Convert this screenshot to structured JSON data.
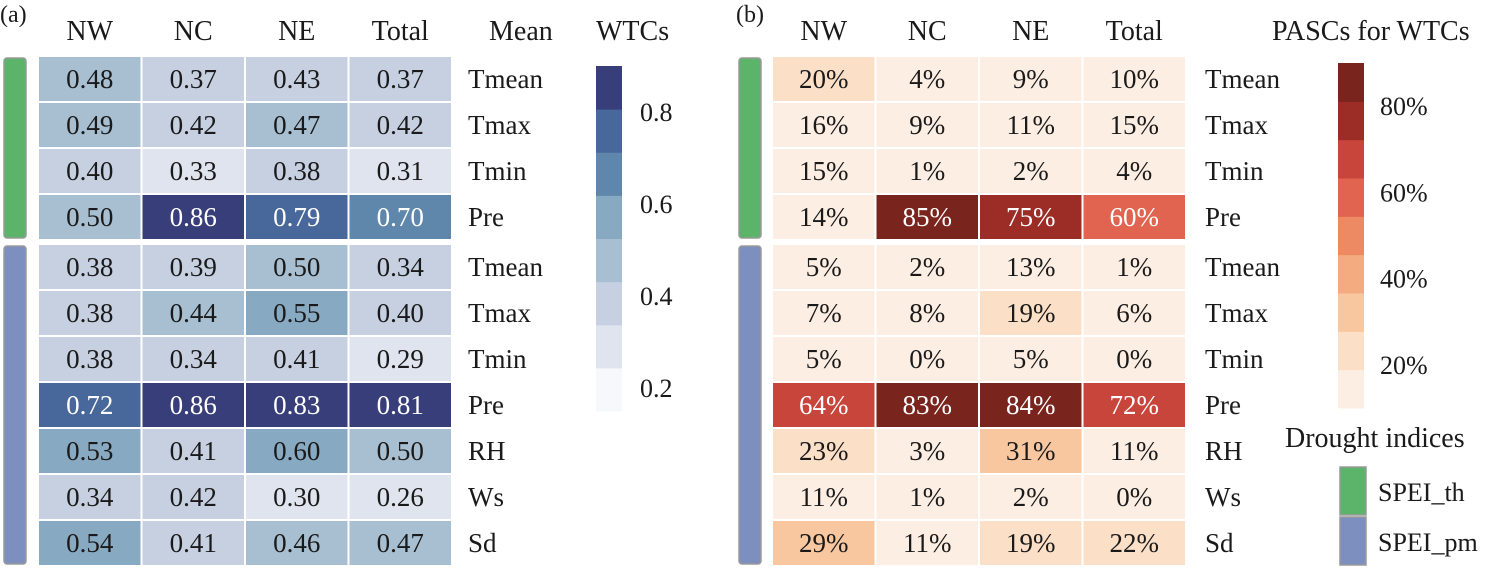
{
  "chart_data": [
    {
      "type": "heatmap",
      "panel_label": "(a)",
      "columns": [
        "NW",
        "NC",
        "NE",
        "Total"
      ],
      "row_header": "Mean",
      "rows": [
        "Tmean",
        "Tmax",
        "Tmin",
        "Pre",
        "Tmean",
        "Tmax",
        "Tmin",
        "Pre",
        "RH",
        "Ws",
        "Sd"
      ],
      "row_groups": [
        "SPEI_th",
        "SPEI_th",
        "SPEI_th",
        "SPEI_th",
        "SPEI_pm",
        "SPEI_pm",
        "SPEI_pm",
        "SPEI_pm",
        "SPEI_pm",
        "SPEI_pm",
        "SPEI_pm"
      ],
      "values": [
        [
          0.48,
          0.37,
          0.43,
          0.37
        ],
        [
          0.49,
          0.42,
          0.47,
          0.42
        ],
        [
          0.4,
          0.33,
          0.38,
          0.31
        ],
        [
          0.5,
          0.86,
          0.79,
          0.7
        ],
        [
          0.38,
          0.39,
          0.5,
          0.34
        ],
        [
          0.38,
          0.44,
          0.55,
          0.4
        ],
        [
          0.38,
          0.34,
          0.41,
          0.29
        ],
        [
          0.72,
          0.86,
          0.83,
          0.81
        ],
        [
          0.53,
          0.41,
          0.6,
          0.5
        ],
        [
          0.34,
          0.42,
          0.3,
          0.26
        ],
        [
          0.54,
          0.41,
          0.46,
          0.47
        ]
      ],
      "value_labels": [
        [
          "0.48",
          "0.37",
          "0.43",
          "0.37"
        ],
        [
          "0.49",
          "0.42",
          "0.47",
          "0.42"
        ],
        [
          "0.40",
          "0.33",
          "0.38",
          "0.31"
        ],
        [
          "0.50",
          "0.86",
          "0.79",
          "0.70"
        ],
        [
          "0.38",
          "0.39",
          "0.50",
          "0.34"
        ],
        [
          "0.38",
          "0.44",
          "0.55",
          "0.40"
        ],
        [
          "0.38",
          "0.34",
          "0.41",
          "0.29"
        ],
        [
          "0.72",
          "0.86",
          "0.83",
          "0.81"
        ],
        [
          "0.53",
          "0.41",
          "0.60",
          "0.50"
        ],
        [
          "0.34",
          "0.42",
          "0.30",
          "0.26"
        ],
        [
          "0.54",
          "0.41",
          "0.46",
          "0.47"
        ]
      ],
      "colorbar": {
        "title": "WTCs",
        "range": [
          0.15,
          0.9
        ],
        "ticks": [
          0.2,
          0.4,
          0.6,
          0.8
        ],
        "tick_labels": [
          "0.2",
          "0.4",
          "0.6",
          "0.8"
        ],
        "colors": [
          "#f7f8fb",
          "#dfe4ee",
          "#c6d0e1",
          "#a7bfd1",
          "#87a9c1",
          "#5e87ab",
          "#48679a",
          "#373e79"
        ]
      }
    },
    {
      "type": "heatmap",
      "panel_label": "(b)",
      "columns": [
        "NW",
        "NC",
        "NE",
        "Total"
      ],
      "rows": [
        "Tmean",
        "Tmax",
        "Tmin",
        "Pre",
        "Tmean",
        "Tmax",
        "Tmin",
        "Pre",
        "RH",
        "Ws",
        "Sd"
      ],
      "row_groups": [
        "SPEI_th",
        "SPEI_th",
        "SPEI_th",
        "SPEI_th",
        "SPEI_pm",
        "SPEI_pm",
        "SPEI_pm",
        "SPEI_pm",
        "SPEI_pm",
        "SPEI_pm",
        "SPEI_pm"
      ],
      "values": [
        [
          20,
          4,
          9,
          10
        ],
        [
          16,
          9,
          11,
          15
        ],
        [
          15,
          1,
          2,
          4
        ],
        [
          14,
          85,
          75,
          60
        ],
        [
          5,
          2,
          13,
          1
        ],
        [
          7,
          8,
          19,
          6
        ],
        [
          5,
          0,
          5,
          0
        ],
        [
          64,
          83,
          84,
          72
        ],
        [
          23,
          3,
          31,
          11
        ],
        [
          11,
          1,
          2,
          0
        ],
        [
          29,
          11,
          19,
          22
        ]
      ],
      "value_labels": [
        [
          "20%",
          "4%",
          "9%",
          "10%"
        ],
        [
          "16%",
          "9%",
          "11%",
          "15%"
        ],
        [
          "15%",
          "1%",
          "2%",
          "4%"
        ],
        [
          "14%",
          "85%",
          "75%",
          "60%"
        ],
        [
          "5%",
          "2%",
          "13%",
          "1%"
        ],
        [
          "7%",
          "8%",
          "19%",
          "6%"
        ],
        [
          "5%",
          "0%",
          "5%",
          "0%"
        ],
        [
          "64%",
          "83%",
          "84%",
          "72%"
        ],
        [
          "23%",
          "3%",
          "31%",
          "11%"
        ],
        [
          "11%",
          "1%",
          "2%",
          "0%"
        ],
        [
          "29%",
          "11%",
          "19%",
          "22%"
        ]
      ],
      "colorbar": {
        "title": "PASCs for WTCs",
        "range": [
          10,
          90
        ],
        "ticks": [
          20,
          40,
          60,
          80
        ],
        "tick_labels": [
          "20%",
          "40%",
          "60%",
          "80%"
        ],
        "colors": [
          "#fdeee3",
          "#fbdfc6",
          "#f8c7a0",
          "#f4ab7f",
          "#ed8a64",
          "#e06450",
          "#c7453a",
          "#9c2c26",
          "#7a241e"
        ]
      }
    }
  ],
  "legend": {
    "title": "Drought indices",
    "items": [
      {
        "label": "SPEI_th",
        "color": "#5cb46a"
      },
      {
        "label": "SPEI_pm",
        "color": "#7c8fbf"
      }
    ]
  },
  "colors": {
    "cell_border": "#ffffff",
    "group_bar_border": "#9a9a9a",
    "text_on_dark": "#ffffff",
    "text_on_light": "#1a1a1a"
  }
}
